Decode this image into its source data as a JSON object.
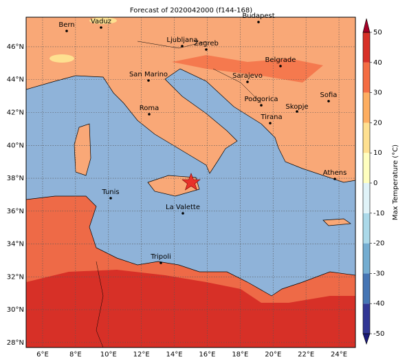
{
  "title": "Forecast of 2020042000 (f144-168)",
  "map": {
    "xlim": [
      5,
      25
    ],
    "ylim": [
      27.7,
      47.8
    ],
    "grid": true,
    "xticks": [
      {
        "value": 6,
        "label": "6°E"
      },
      {
        "value": 8,
        "label": "8°E"
      },
      {
        "value": 10,
        "label": "10°E"
      },
      {
        "value": 12,
        "label": "12°E"
      },
      {
        "value": 14,
        "label": "14°E"
      },
      {
        "value": 16,
        "label": "16°E"
      },
      {
        "value": 18,
        "label": "18°E"
      },
      {
        "value": 20,
        "label": "20°E"
      },
      {
        "value": 22,
        "label": "22°E"
      },
      {
        "value": 24,
        "label": "24°E"
      }
    ],
    "yticks": [
      {
        "value": 28,
        "label": "28°N"
      },
      {
        "value": 30,
        "label": "30°N"
      },
      {
        "value": 32,
        "label": "32°N"
      },
      {
        "value": 34,
        "label": "34°N"
      },
      {
        "value": 36,
        "label": "36°N"
      },
      {
        "value": 38,
        "label": "38°N"
      },
      {
        "value": 40,
        "label": "40°N"
      },
      {
        "value": 42,
        "label": "42°N"
      },
      {
        "value": 44,
        "label": "44°N"
      },
      {
        "value": 46,
        "label": "46°N"
      }
    ]
  },
  "cities": [
    "Bern",
    "Vaduz",
    "Budapest",
    "Ljubljana",
    "Zagreb",
    "San Marino",
    "Belgrade",
    "Sarajevo",
    "Sofia",
    "Roma",
    "Podgorica",
    "Skopje",
    "Tirana",
    "Athens",
    "Tunis",
    "La Valette",
    "Tripoli"
  ],
  "colorbar": {
    "label": "Max Temperature (°C)",
    "lim": [
      -50,
      50
    ],
    "ticks": [
      -50,
      -40,
      -30,
      -20,
      -10,
      0,
      10,
      20,
      30,
      40,
      50
    ],
    "colors": [
      "#1a1a7a",
      "#313695",
      "#4575b4",
      "#74add1",
      "#abd9e9",
      "#e0f3f8",
      "#ffffbf",
      "#fee090",
      "#fdae61",
      "#f46d43",
      "#d73027",
      "#a50026"
    ]
  }
}
